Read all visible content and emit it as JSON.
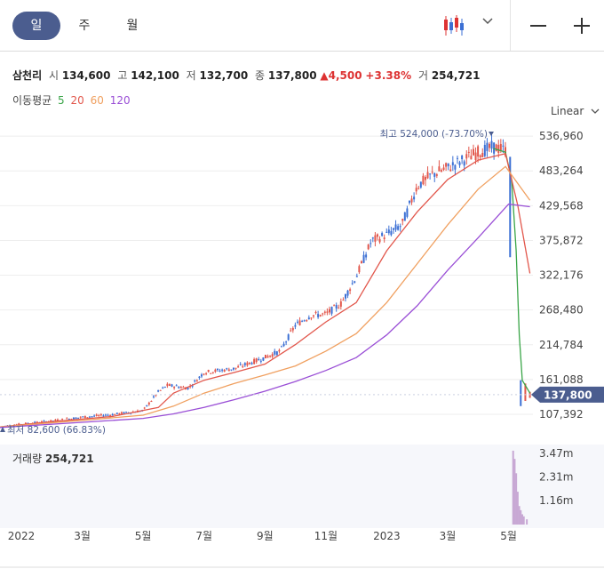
{
  "tabs": [
    {
      "label": "일",
      "active": true
    },
    {
      "label": "주",
      "active": false
    },
    {
      "label": "월",
      "active": false
    }
  ],
  "quote": {
    "name": "삼천리",
    "open_label": "시",
    "open": "134,600",
    "high_label": "고",
    "high": "142,100",
    "low_label": "저",
    "low": "132,700",
    "close_label": "종",
    "close": "137,800",
    "change": "4,500",
    "change_pct": "+3.38%",
    "volume_label": "거",
    "volume": "254,721"
  },
  "moving_average": {
    "label": "이동평균",
    "periods": [
      {
        "label": "5",
        "color": "#3aa548"
      },
      {
        "label": "20",
        "color": "#e2574c"
      },
      {
        "label": "60",
        "color": "#f0a060"
      },
      {
        "label": "120",
        "color": "#9a4fd6"
      }
    ]
  },
  "scale_button": "Linear",
  "volume_panel_label": "거래량",
  "volume_panel_value": "254,721",
  "colors": {
    "up": "#e2574c",
    "down": "#3b6fd4",
    "price_tag": "#4b5d8f",
    "volume": "#c8a8d4"
  },
  "chart_data": {
    "type": "line",
    "y_ticks": [
      "536,960",
      "483,264",
      "429,568",
      "375,872",
      "322,176",
      "268,480",
      "214,784",
      "161,088",
      "107,392"
    ],
    "y_tick_values": [
      536960,
      483264,
      429568,
      375872,
      322176,
      268480,
      214784,
      161088,
      107392
    ],
    "ylim": [
      95000,
      555000
    ],
    "x_labels": [
      "2022",
      "3월",
      "5월",
      "7월",
      "9월",
      "11월",
      "2023",
      "3월",
      "5월"
    ],
    "x_label_months": [
      0,
      2,
      4,
      6,
      8,
      10,
      12,
      14,
      16
    ],
    "x_range_months": [
      -0.7,
      16.8
    ],
    "current_price": 137800,
    "current_price_label": "137,800",
    "max_annotation": "최고 524,000 (-73.70%)",
    "min_annotation": "최저 82,600 (66.83%)",
    "close_series": [
      {
        "m": -0.7,
        "v": 88000
      },
      {
        "m": 0,
        "v": 92000
      },
      {
        "m": 1,
        "v": 97000
      },
      {
        "m": 2,
        "v": 103000
      },
      {
        "m": 3,
        "v": 107000
      },
      {
        "m": 4,
        "v": 113000
      },
      {
        "m": 4.5,
        "v": 142000
      },
      {
        "m": 4.8,
        "v": 152000
      },
      {
        "m": 5.5,
        "v": 148000
      },
      {
        "m": 6,
        "v": 172000
      },
      {
        "m": 7,
        "v": 178000
      },
      {
        "m": 8,
        "v": 195000
      },
      {
        "m": 8.5,
        "v": 205000
      },
      {
        "m": 9,
        "v": 245000
      },
      {
        "m": 9.5,
        "v": 260000
      },
      {
        "m": 10,
        "v": 262000
      },
      {
        "m": 10.5,
        "v": 278000
      },
      {
        "m": 11,
        "v": 320000
      },
      {
        "m": 11.5,
        "v": 375000
      },
      {
        "m": 12,
        "v": 385000
      },
      {
        "m": 12.5,
        "v": 400000
      },
      {
        "m": 13,
        "v": 460000
      },
      {
        "m": 13.5,
        "v": 478000
      },
      {
        "m": 14,
        "v": 488000
      },
      {
        "m": 14.5,
        "v": 500000
      },
      {
        "m": 15,
        "v": 512000
      },
      {
        "m": 15.5,
        "v": 520000
      },
      {
        "m": 15.9,
        "v": 515000
      },
      {
        "m": 16.05,
        "v": 350000
      },
      {
        "m": 16.2,
        "v": 245000
      },
      {
        "m": 16.3,
        "v": 172000
      },
      {
        "m": 16.4,
        "v": 132000
      },
      {
        "m": 16.55,
        "v": 140000
      },
      {
        "m": 16.7,
        "v": 137800
      }
    ],
    "series": [
      {
        "name": "5",
        "color": "#3aa548",
        "points": [
          {
            "m": 15.5,
            "v": 518000
          },
          {
            "m": 15.9,
            "v": 512000
          },
          {
            "m": 16.1,
            "v": 470000
          },
          {
            "m": 16.25,
            "v": 360000
          },
          {
            "m": 16.35,
            "v": 230000
          },
          {
            "m": 16.45,
            "v": 160000
          },
          {
            "m": 16.7,
            "v": 140000
          }
        ]
      },
      {
        "name": "20",
        "color": "#e2574c",
        "points": [
          {
            "m": -0.7,
            "v": 88000
          },
          {
            "m": 1,
            "v": 96000
          },
          {
            "m": 3,
            "v": 104000
          },
          {
            "m": 4.5,
            "v": 118000
          },
          {
            "m": 5,
            "v": 140000
          },
          {
            "m": 6,
            "v": 160000
          },
          {
            "m": 7,
            "v": 172000
          },
          {
            "m": 8,
            "v": 185000
          },
          {
            "m": 9,
            "v": 215000
          },
          {
            "m": 10,
            "v": 250000
          },
          {
            "m": 11,
            "v": 280000
          },
          {
            "m": 12,
            "v": 360000
          },
          {
            "m": 13,
            "v": 420000
          },
          {
            "m": 14,
            "v": 470000
          },
          {
            "m": 15,
            "v": 500000
          },
          {
            "m": 15.9,
            "v": 510000
          },
          {
            "m": 16.3,
            "v": 430000
          },
          {
            "m": 16.7,
            "v": 325000
          }
        ]
      },
      {
        "name": "60",
        "color": "#f0a060",
        "points": [
          {
            "m": -0.7,
            "v": 88000
          },
          {
            "m": 2,
            "v": 98000
          },
          {
            "m": 4,
            "v": 106000
          },
          {
            "m": 5,
            "v": 120000
          },
          {
            "m": 6,
            "v": 140000
          },
          {
            "m": 7,
            "v": 155000
          },
          {
            "m": 8,
            "v": 168000
          },
          {
            "m": 9,
            "v": 182000
          },
          {
            "m": 10,
            "v": 205000
          },
          {
            "m": 11,
            "v": 232000
          },
          {
            "m": 12,
            "v": 280000
          },
          {
            "m": 13,
            "v": 340000
          },
          {
            "m": 14,
            "v": 400000
          },
          {
            "m": 15,
            "v": 455000
          },
          {
            "m": 15.9,
            "v": 490000
          },
          {
            "m": 16.7,
            "v": 438000
          }
        ]
      },
      {
        "name": "120",
        "color": "#9a4fd6",
        "points": [
          {
            "m": -0.7,
            "v": 87000
          },
          {
            "m": 2,
            "v": 95000
          },
          {
            "m": 4,
            "v": 101000
          },
          {
            "m": 5,
            "v": 108000
          },
          {
            "m": 6,
            "v": 118000
          },
          {
            "m": 7,
            "v": 130000
          },
          {
            "m": 8,
            "v": 143000
          },
          {
            "m": 9,
            "v": 158000
          },
          {
            "m": 10,
            "v": 175000
          },
          {
            "m": 11,
            "v": 195000
          },
          {
            "m": 12,
            "v": 230000
          },
          {
            "m": 13,
            "v": 275000
          },
          {
            "m": 14,
            "v": 330000
          },
          {
            "m": 15,
            "v": 380000
          },
          {
            "m": 16,
            "v": 432000
          },
          {
            "m": 16.7,
            "v": 428000
          }
        ]
      }
    ],
    "volume": {
      "y_ticks": [
        "3.47m",
        "2.31m",
        "1.16m"
      ],
      "y_tick_values": [
        3470000,
        2310000,
        1160000
      ],
      "ylim": [
        0,
        3900000
      ],
      "bars": [
        {
          "m": 16.15,
          "v": 3600000
        },
        {
          "m": 16.2,
          "v": 3200000
        },
        {
          "m": 16.25,
          "v": 2500000
        },
        {
          "m": 16.3,
          "v": 1600000
        },
        {
          "m": 16.35,
          "v": 900000
        },
        {
          "m": 16.4,
          "v": 700000
        },
        {
          "m": 16.45,
          "v": 500000
        },
        {
          "m": 16.5,
          "v": 400000
        },
        {
          "m": 16.6,
          "v": 254721
        }
      ]
    }
  }
}
